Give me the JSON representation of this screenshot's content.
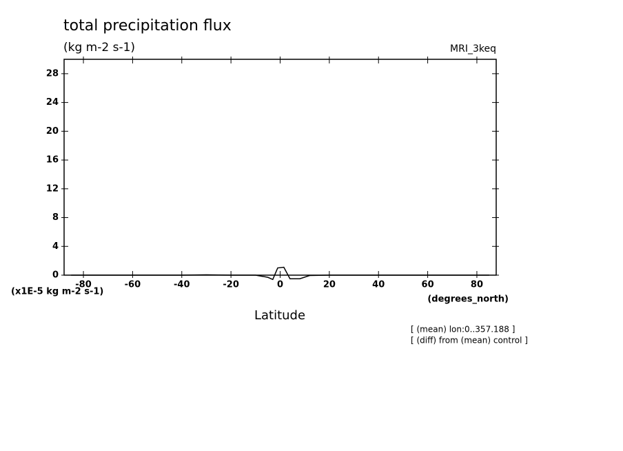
{
  "chart_data": {
    "type": "line",
    "title": "total precipitation flux",
    "subtitle": "(kg m-2 s-1)",
    "model_label": "MRI_3keq",
    "y_unit_label": "(x1E-5 kg m-2 s-1)",
    "x_unit_label": "(degrees_north)",
    "xlabel": "Latitude",
    "notes": [
      "[ (mean) lon:0..357.188 ]",
      "[ (diff) from (mean) control ]"
    ],
    "x": [
      -85,
      -70,
      -60,
      -40,
      -30,
      -20,
      -10,
      -5,
      -3,
      -1,
      1.5,
      4,
      8,
      12,
      20,
      40,
      60,
      70,
      85
    ],
    "series": [
      {
        "name": "MRI_3keq",
        "color": "#000000",
        "values": [
          0,
          0,
          0,
          0,
          0.05,
          0,
          0,
          -0.3,
          -0.6,
          1.0,
          1.1,
          -0.5,
          -0.5,
          -0.05,
          0,
          0,
          0,
          0,
          0
        ]
      }
    ],
    "xlim": [
      -87.86,
      87.86
    ],
    "ylim": [
      0,
      30
    ],
    "xticks": [
      -80,
      -60,
      -40,
      -20,
      0,
      20,
      40,
      60,
      80
    ],
    "yticks": [
      0,
      4,
      8,
      12,
      16,
      20,
      24,
      28
    ]
  }
}
